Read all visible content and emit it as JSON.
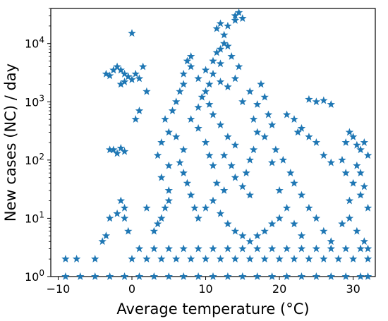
{
  "chart_data": {
    "type": "scatter",
    "title": "",
    "xlabel": "Average temperature (°C)",
    "ylabel": "New cases (NC) / day",
    "xlim": [
      -11,
      33
    ],
    "ylim": [
      1,
      40000
    ],
    "yscale": "log",
    "grid": false,
    "marker": "star",
    "color": "#1f77b4",
    "x_ticks": [
      -10,
      0,
      10,
      20,
      30
    ],
    "y_ticks": [
      1,
      10,
      100,
      1000,
      10000
    ],
    "y_tick_labels": [
      "10^0",
      "10^1",
      "10^2",
      "10^3",
      "10^4"
    ],
    "points": [
      [
        -9,
        2
      ],
      [
        -7.5,
        2
      ],
      [
        -5,
        2
      ],
      [
        -4,
        4
      ],
      [
        -3.5,
        5
      ],
      [
        -3,
        10
      ],
      [
        -2,
        12
      ],
      [
        -1.5,
        20
      ],
      [
        -1,
        15
      ],
      [
        -0.5,
        6
      ],
      [
        -1,
        10
      ],
      [
        -3,
        150
      ],
      [
        -2.5,
        150
      ],
      [
        -1.5,
        160
      ],
      [
        -1,
        140
      ],
      [
        -2,
        130
      ],
      [
        -3.5,
        3000
      ],
      [
        -3,
        2800
      ],
      [
        -2.5,
        3500
      ],
      [
        -2,
        4000
      ],
      [
        -1.5,
        3500
      ],
      [
        -1,
        3000
      ],
      [
        -0.5,
        2700
      ],
      [
        0,
        2400
      ],
      [
        0.5,
        3000
      ],
      [
        -1.5,
        2000
      ],
      [
        1,
        2500
      ],
      [
        1.5,
        4000
      ],
      [
        2,
        1500
      ],
      [
        -1,
        2200
      ],
      [
        0,
        15000
      ],
      [
        1,
        700
      ],
      [
        0.5,
        500
      ],
      [
        2,
        15
      ],
      [
        3,
        6
      ],
      [
        3.5,
        8
      ],
      [
        4,
        10
      ],
      [
        4.5,
        15
      ],
      [
        5,
        20
      ],
      [
        5,
        30
      ],
      [
        4,
        50
      ],
      [
        5,
        80
      ],
      [
        3.5,
        120
      ],
      [
        4,
        200
      ],
      [
        5,
        300
      ],
      [
        4.5,
        500
      ],
      [
        5.5,
        700
      ],
      [
        6,
        1000
      ],
      [
        6.5,
        1500
      ],
      [
        7,
        2000
      ],
      [
        7,
        3000
      ],
      [
        7.5,
        5000
      ],
      [
        8,
        6000
      ],
      [
        8,
        4000
      ],
      [
        6,
        250
      ],
      [
        7,
        150
      ],
      [
        6.5,
        90
      ],
      [
        7,
        60
      ],
      [
        7.5,
        40
      ],
      [
        8,
        25
      ],
      [
        8.5,
        15
      ],
      [
        9,
        10
      ],
      [
        8,
        500
      ],
      [
        9,
        800
      ],
      [
        9.5,
        1200
      ],
      [
        10,
        1500
      ],
      [
        10.5,
        900
      ],
      [
        9,
        350
      ],
      [
        10,
        200
      ],
      [
        10.5,
        120
      ],
      [
        11,
        80
      ],
      [
        9,
        2500
      ],
      [
        10,
        3500
      ],
      [
        10.5,
        2000
      ],
      [
        11,
        5000
      ],
      [
        11.5,
        7000
      ],
      [
        12,
        8000
      ],
      [
        12.5,
        10000
      ],
      [
        13,
        9000
      ],
      [
        13.5,
        6000
      ],
      [
        12,
        4500
      ],
      [
        11,
        3000
      ],
      [
        12,
        2200
      ],
      [
        13,
        1800
      ],
      [
        14,
        2500
      ],
      [
        14.5,
        4000
      ],
      [
        11.5,
        18000
      ],
      [
        12,
        22000
      ],
      [
        12.5,
        14000
      ],
      [
        13,
        20000
      ],
      [
        14,
        30000
      ],
      [
        14.5,
        34000
      ],
      [
        15,
        27000
      ],
      [
        14,
        25000
      ],
      [
        11,
        600
      ],
      [
        12,
        400
      ],
      [
        13,
        250
      ],
      [
        14,
        180
      ],
      [
        12.5,
        120
      ],
      [
        13.5,
        80
      ],
      [
        14,
        50
      ],
      [
        15,
        35
      ],
      [
        16,
        25
      ],
      [
        15.5,
        60
      ],
      [
        16,
        100
      ],
      [
        16.5,
        150
      ],
      [
        17,
        300
      ],
      [
        16.5,
        500
      ],
      [
        17,
        900
      ],
      [
        16,
        1500
      ],
      [
        15,
        1000
      ],
      [
        17.5,
        2000
      ],
      [
        18,
        1200
      ],
      [
        18.5,
        600
      ],
      [
        19,
        400
      ],
      [
        18,
        250
      ],
      [
        19.5,
        150
      ],
      [
        19,
        90
      ],
      [
        10,
        15
      ],
      [
        11,
        20
      ],
      [
        12,
        12
      ],
      [
        13,
        8
      ],
      [
        14,
        6
      ],
      [
        15,
        5
      ],
      [
        16,
        4
      ],
      [
        17,
        5
      ],
      [
        18,
        6
      ],
      [
        19,
        8
      ],
      [
        20,
        10
      ],
      [
        11.5,
        40
      ],
      [
        12.5,
        30
      ],
      [
        21,
        600
      ],
      [
        22,
        500
      ],
      [
        23,
        350
      ],
      [
        22.5,
        300
      ],
      [
        24,
        250
      ],
      [
        25,
        200
      ],
      [
        26,
        120
      ],
      [
        27,
        90
      ],
      [
        24,
        1100
      ],
      [
        25,
        1000
      ],
      [
        26,
        1050
      ],
      [
        27,
        900
      ],
      [
        20.5,
        100
      ],
      [
        21.5,
        60
      ],
      [
        22,
        40
      ],
      [
        23,
        25
      ],
      [
        24,
        15
      ],
      [
        25,
        10
      ],
      [
        26,
        6
      ],
      [
        27,
        4
      ],
      [
        20,
        30
      ],
      [
        21,
        15
      ],
      [
        22,
        8
      ],
      [
        23,
        5
      ],
      [
        28.5,
        100
      ],
      [
        29,
        200
      ],
      [
        29.5,
        300
      ],
      [
        30,
        250
      ],
      [
        30.5,
        180
      ],
      [
        31,
        150
      ],
      [
        31.5,
        200
      ],
      [
        32,
        120
      ],
      [
        29,
        60
      ],
      [
        30,
        40
      ],
      [
        31,
        25
      ],
      [
        32,
        15
      ],
      [
        29.5,
        10
      ],
      [
        30.5,
        6
      ],
      [
        31.5,
        4
      ],
      [
        32,
        3
      ],
      [
        28.5,
        8
      ],
      [
        29.5,
        20
      ],
      [
        30.5,
        80
      ],
      [
        31,
        60
      ],
      [
        31.5,
        35
      ],
      [
        -9,
        1
      ],
      [
        -7,
        1
      ],
      [
        -5,
        1
      ],
      [
        -3,
        1
      ],
      [
        -1,
        1
      ],
      [
        1,
        1
      ],
      [
        3,
        1
      ],
      [
        5,
        1
      ],
      [
        7,
        1
      ],
      [
        9,
        1
      ],
      [
        11,
        1
      ],
      [
        13,
        1
      ],
      [
        15,
        1
      ],
      [
        17,
        1
      ],
      [
        19,
        1
      ],
      [
        21,
        1
      ],
      [
        23,
        1
      ],
      [
        25,
        1
      ],
      [
        27,
        1
      ],
      [
        29,
        1
      ],
      [
        31,
        1
      ],
      [
        32,
        1
      ],
      [
        0,
        2
      ],
      [
        2,
        2
      ],
      [
        4,
        2
      ],
      [
        6,
        2
      ],
      [
        8,
        2
      ],
      [
        10,
        2
      ],
      [
        12,
        2
      ],
      [
        14,
        2
      ],
      [
        16,
        2
      ],
      [
        18,
        2
      ],
      [
        20,
        2
      ],
      [
        22,
        2
      ],
      [
        24,
        2
      ],
      [
        26,
        2
      ],
      [
        28,
        2
      ],
      [
        30,
        2
      ],
      [
        32,
        2
      ],
      [
        1,
        3
      ],
      [
        3,
        3
      ],
      [
        5,
        3
      ],
      [
        7,
        3
      ],
      [
        9,
        3
      ],
      [
        11,
        3
      ],
      [
        13,
        3
      ],
      [
        15,
        3
      ],
      [
        17,
        3
      ],
      [
        19,
        3
      ],
      [
        21,
        3
      ],
      [
        23,
        3
      ],
      [
        25,
        3
      ],
      [
        27,
        3
      ],
      [
        29,
        3
      ],
      [
        31,
        3
      ]
    ]
  }
}
